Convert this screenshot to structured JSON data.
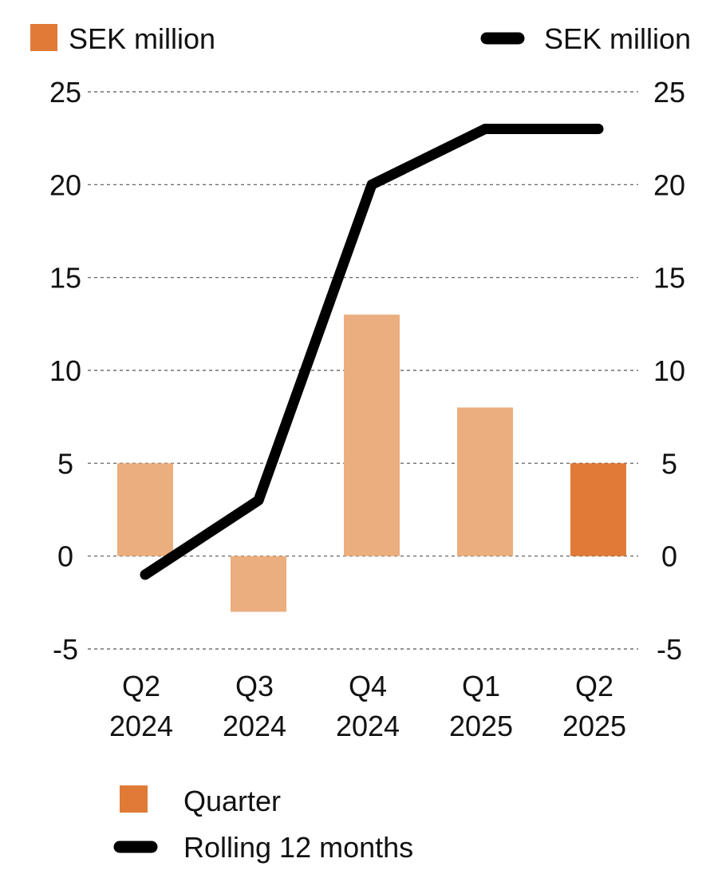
{
  "chart_data": {
    "type": "bar",
    "categories": [
      {
        "line1": "Q2",
        "line2": "2024"
      },
      {
        "line1": "Q3",
        "line2": "2024"
      },
      {
        "line1": "Q4",
        "line2": "2024"
      },
      {
        "line1": "Q1",
        "line2": "2025"
      },
      {
        "line1": "Q2",
        "line2": "2025"
      }
    ],
    "series": [
      {
        "name": "Quarter",
        "type": "bar",
        "values": [
          5,
          -3,
          13,
          8,
          5
        ]
      },
      {
        "name": "Rolling 12 months",
        "type": "line",
        "values": [
          -1,
          3,
          20,
          23,
          23
        ]
      }
    ],
    "left_axis_label": "SEK million",
    "right_axis_label": "SEK million",
    "ylim": [
      -5,
      25
    ],
    "yticks": [
      25,
      20,
      15,
      10,
      5,
      0,
      -5
    ],
    "grid": true,
    "legend_position": "bottom-left",
    "colors": {
      "bar": "#ebae7e",
      "bar_highlight": "#e07a36",
      "line": "#000000",
      "axis_key": "#e07a36"
    }
  }
}
